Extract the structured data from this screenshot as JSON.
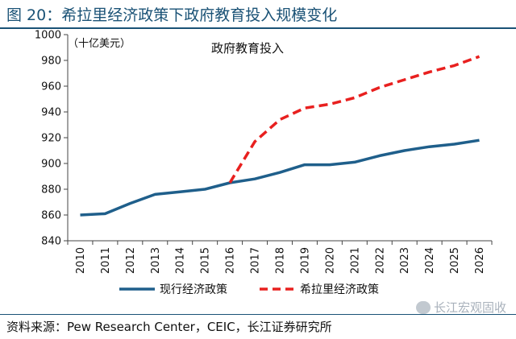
{
  "figure": {
    "title": "图 20：希拉里经济政策下政府教育投入规模变化",
    "source": "资料来源：Pew Research Center，CEIC，长江证券研究所",
    "watermark": "长江宏观固收"
  },
  "chart_data": {
    "type": "line",
    "title": "政府教育投入",
    "unit_label": "（十亿美元）",
    "xlabel": "",
    "ylabel": "",
    "ylim": [
      840,
      1000
    ],
    "yticks": [
      840,
      860,
      880,
      900,
      920,
      940,
      960,
      980,
      1000
    ],
    "categories": [
      "2010",
      "2011",
      "2012",
      "2013",
      "2014",
      "2015",
      "2016",
      "2017",
      "2018",
      "2019",
      "2020",
      "2021",
      "2022",
      "2023",
      "2024",
      "2025",
      "2026"
    ],
    "grid": false,
    "legend_position": "bottom",
    "series": [
      {
        "name": "现行经济政策",
        "color": "#1f5f8b",
        "style": "solid",
        "values": [
          860,
          861,
          869,
          876,
          878,
          880,
          885,
          888,
          893,
          899,
          899,
          901,
          906,
          910,
          913,
          915,
          918
        ]
      },
      {
        "name": "希拉里经济政策",
        "color": "#e8201f",
        "style": "dashed",
        "values": [
          null,
          null,
          null,
          null,
          null,
          null,
          885,
          917,
          934,
          943,
          946,
          951,
          959,
          965,
          971,
          976,
          983
        ]
      }
    ]
  }
}
